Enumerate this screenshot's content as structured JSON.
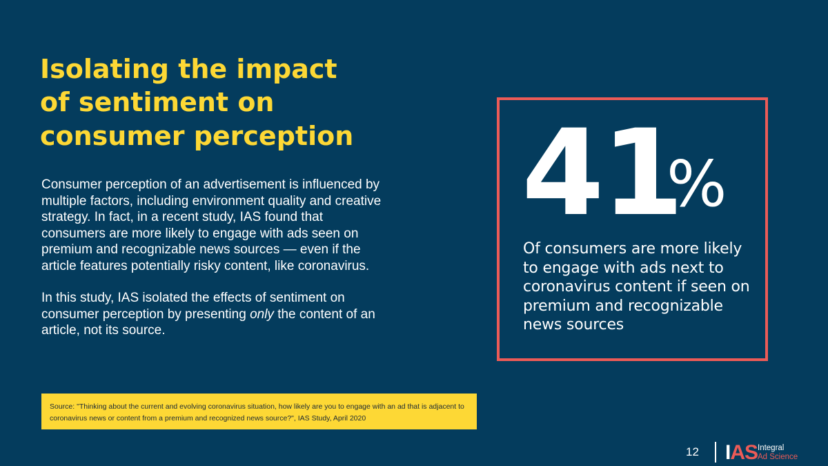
{
  "slide": {
    "title_lines": [
      "Isolating the impact",
      "of sentiment on",
      "consumer perception"
    ],
    "body": {
      "paragraph1": "Consumer perception of an advertisement is influenced by multiple factors, including environment quality and creative strategy. In fact, in a recent study, IAS found that consumers are more likely to engage with ads seen on premium and recognizable news sources — even if the article features potentially risky content, like coronavirus.",
      "paragraph2_before": "In this study, IAS isolated the effects of sentiment on consumer perception by presenting ",
      "paragraph2_emphasis": "only",
      "paragraph2_after": " the content of an article, not its source."
    },
    "source_note": "Source: \"Thinking about the current and evolving coronavirus situation, how likely are you to engage with an ad that is adjacent to coronavirus news or content from a premium and recognized news source?\", IAS Study, April 2020",
    "stat": {
      "number": "41",
      "unit": "%",
      "caption": "Of consumers are more likely to engage with ads next to coronavirus content if seen on premium and recognizable news sources"
    },
    "footer": {
      "page_number": "12",
      "logo_mark_white": "I",
      "logo_mark_coral": "AS",
      "logo_word_1": "Integral",
      "logo_word_2": "Ad Science"
    }
  },
  "colors": {
    "background": "#043c5d",
    "title": "#fdd835",
    "source_box": "#fdd835",
    "accent_border": "#ec5b57",
    "text": "#ffffff"
  }
}
